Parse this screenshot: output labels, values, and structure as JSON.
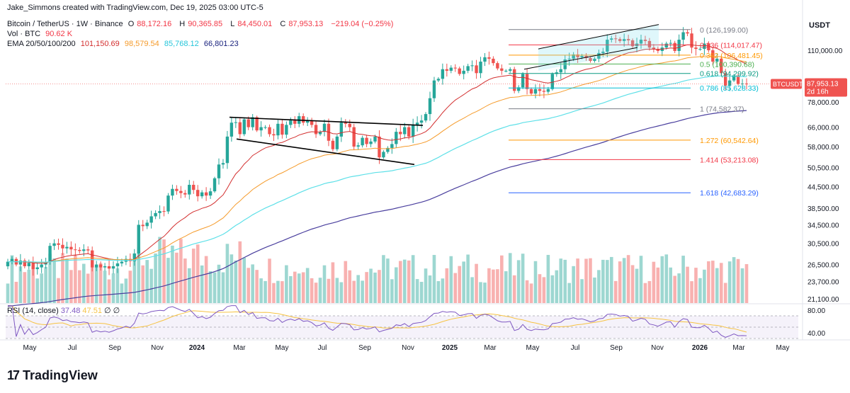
{
  "header": {
    "credit": "Jake_Simmons created with TradingView.com, Dec 19, 2025 03:00 UTC-5",
    "symbol": "Bitcoin / TetherUS · 1W · Binance",
    "o_label": "O",
    "o_value": "88,172.16",
    "h_label": "H",
    "h_value": "90,365.85",
    "l_label": "L",
    "l_value": "84,450.01",
    "c_label": "C",
    "c_value": "87,953.13",
    "change": "−219.04 (−0.25%)",
    "vol_label": "Vol · BTC",
    "vol_value": "90.62 K",
    "ema_label": "EMA 20/50/100/200",
    "ema20": "101,150.69",
    "ema50": "98,579.54",
    "ema100": "85,768.12",
    "ema200": "66,801.23"
  },
  "rsi": {
    "label": "RSI (14, close)",
    "value": "37.48",
    "ma": "47.51",
    "na1": "∅",
    "na2": "∅",
    "ticks": [
      "80.00",
      "40.00"
    ]
  },
  "price_axis": {
    "unit": "USDT",
    "ticks": [
      "110,000.00",
      "78,000.00",
      "66,000.00",
      "58,000.00",
      "50,500.00",
      "44,500.00",
      "38,500.00",
      "34,500.00",
      "30,500.00",
      "26,500.00",
      "23,700.00",
      "21,100.00"
    ],
    "last_symbol": "BTCUSDT",
    "last_price": "87,953.13",
    "countdown": "2d 16h"
  },
  "time_axis": [
    "May",
    "Jul",
    "Sep",
    "Nov",
    "2024",
    "Mar",
    "May",
    "Jul",
    "Sep",
    "Nov",
    "2025",
    "Mar",
    "May",
    "Jul",
    "Sep",
    "Nov",
    "2026",
    "Mar",
    "May"
  ],
  "fib_levels": [
    {
      "label": "0 (126,199.00)",
      "color": "#787b86"
    },
    {
      "label": "0.236 (114,017.47)",
      "color": "#f23645"
    },
    {
      "label": "0.382 (106,481.45)",
      "color": "#ff9800"
    },
    {
      "label": "0.5 (100,390.68)",
      "color": "#4caf50"
    },
    {
      "label": "0.618 (94,299.92)",
      "color": "#089981"
    },
    {
      "label": "0.786 (85,628.33)",
      "color": "#00bcd4"
    },
    {
      "label": "1 (74,582.37)",
      "color": "#787b86"
    },
    {
      "label": "1.272 (60,542.64)",
      "color": "#ff9800"
    },
    {
      "label": "1.414 (53,213.08)",
      "color": "#f23645"
    },
    {
      "label": "1.618 (42,683.29)",
      "color": "#2962ff"
    }
  ],
  "colors": {
    "up": "#26a69a",
    "down": "#ef5350",
    "ema20": "#d32f2f",
    "ema50": "#f59b2b",
    "ema100": "#5ee0e8",
    "ema200": "#4a3f9e",
    "rsi": "#7e57c2",
    "rsi_ma": "#f6c343"
  },
  "brand": "TradingView",
  "chart_data": {
    "type": "candlestick",
    "price_scale": "log",
    "ylim": [
      21100,
      130000
    ],
    "series_closes": [
      27000,
      27500,
      26500,
      27200,
      26200,
      26800,
      25700,
      26000,
      26500,
      27000,
      30000,
      30500,
      30200,
      29500,
      29800,
      29300,
      29200,
      29000,
      29300,
      29100,
      26000,
      26500,
      26000,
      26200,
      25800,
      26200,
      26700,
      27000,
      27500,
      27100,
      28500,
      34500,
      34200,
      35000,
      36500,
      37300,
      37800,
      37700,
      41900,
      43800,
      43200,
      42600,
      42200,
      45000,
      43500,
      41700,
      42800,
      41900,
      43100,
      47000,
      51500,
      52000,
      62000,
      68000,
      68200,
      63000,
      69500,
      66000,
      70500,
      64600,
      66000,
      66000,
      63000,
      62500,
      67500,
      62800,
      67000,
      69000,
      67500,
      71000,
      68000,
      69000,
      67000,
      63000,
      64000,
      67500,
      60300,
      57000,
      62000,
      68000,
      67500,
      66000,
      58000,
      58500,
      61500,
      59000,
      60000,
      62000,
      54000,
      56000,
      57500,
      59000,
      64000,
      63000,
      66000,
      62000,
      67000,
      68000,
      69000,
      72000,
      80000,
      90000,
      91000,
      97000,
      96000,
      98000,
      97500,
      94000,
      96000,
      99000,
      99500,
      94500,
      102000,
      105000,
      104000,
      101000,
      97500,
      96000,
      96000,
      97000,
      84000,
      86000,
      94000,
      85000,
      82500,
      85000,
      84000,
      83500,
      85000,
      94000,
      95000,
      97000,
      103500,
      104000,
      107000,
      105000,
      106000,
      104500,
      102500,
      104000,
      108000,
      109000,
      118000,
      119000,
      118500,
      117000,
      118500,
      117500,
      113000,
      115000,
      118000,
      117000,
      112000,
      111000,
      109500,
      112000,
      115000,
      115500,
      109500,
      118000,
      124000,
      123000,
      112000,
      111000,
      111000,
      115000,
      110000,
      102000,
      104000,
      94500,
      87000,
      90000,
      93000,
      88000,
      88172,
      87953
    ]
  }
}
